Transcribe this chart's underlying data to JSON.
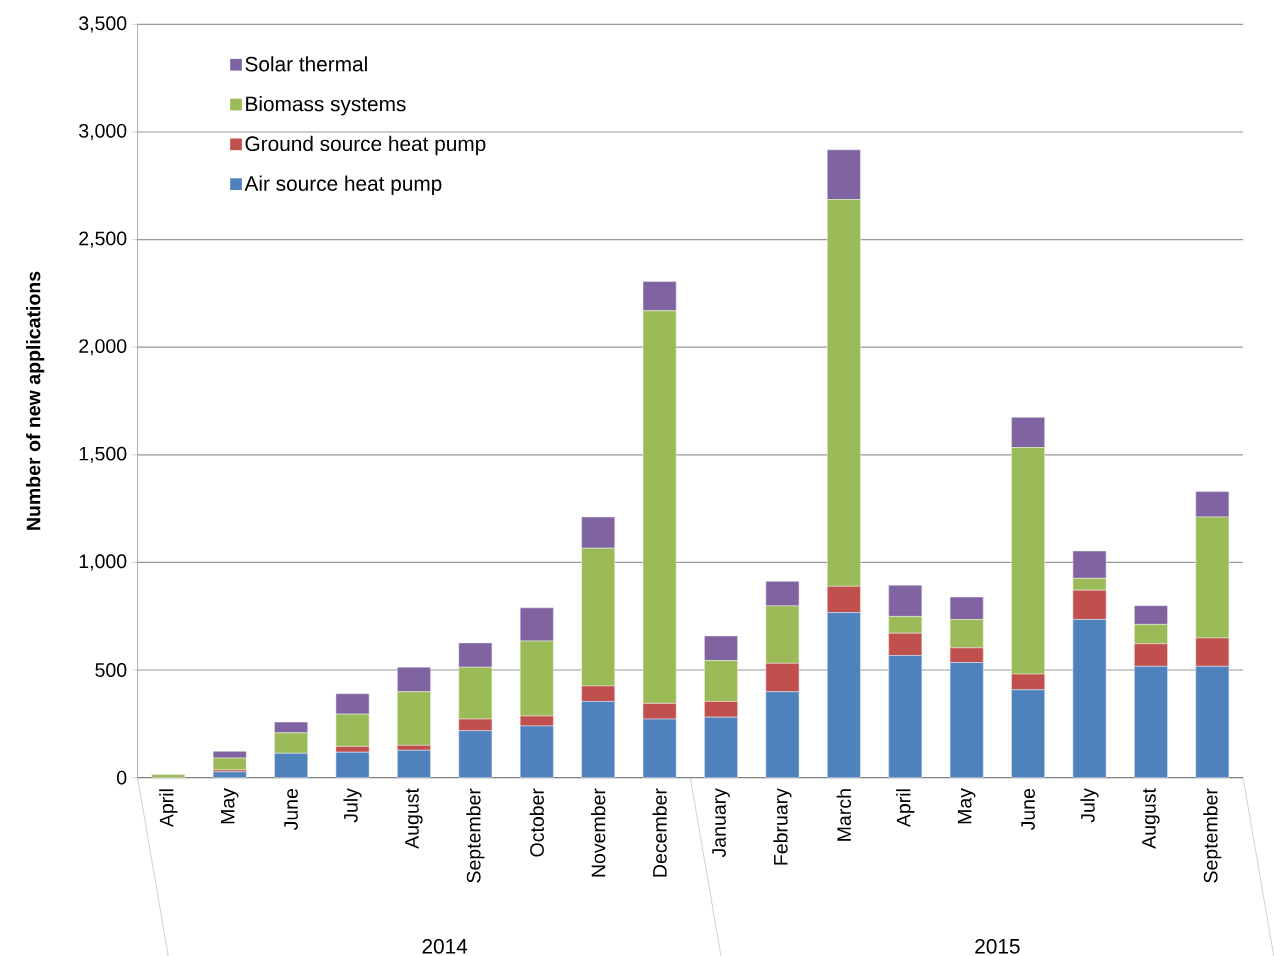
{
  "chart_data": {
    "type": "bar",
    "stacked": true,
    "ylabel": "Number of new applications",
    "categories": [
      "April",
      "May",
      "June",
      "July",
      "August",
      "September",
      "October",
      "November",
      "December",
      "January",
      "February",
      "March",
      "April",
      "May",
      "June",
      "July",
      "August",
      "September"
    ],
    "series": [
      {
        "name": "Air source heat pump",
        "color": "#4f81bd",
        "values": [
          null,
          27,
          113,
          118,
          127,
          218,
          240,
          354,
          272,
          281,
          399,
          767,
          567,
          535,
          408,
          735,
          517,
          517
        ]
      },
      {
        "name": "Ground source heat pump",
        "color": "#c0504d",
        "values": [
          null,
          9,
          null,
          27,
          23,
          54,
          46,
          72,
          73,
          73,
          132,
          122,
          104,
          68,
          73,
          136,
          105,
          132
        ]
      },
      {
        "name": "Biomass systems",
        "color": "#9bbb59",
        "values": [
          15,
          55,
          95,
          150,
          249,
          241,
          349,
          640,
          1824,
          190,
          267,
          1797,
          78,
          132,
          1053,
          55,
          90,
          562
        ]
      },
      {
        "name": "Solar thermal",
        "color": "#8064a2",
        "values": [
          null,
          31,
          50,
          95,
          114,
          113,
          154,
          145,
          136,
          114,
          114,
          231,
          145,
          104,
          140,
          127,
          87,
          118
        ]
      }
    ],
    "ylim": [
      0,
      3500
    ],
    "yticks": [
      0,
      500,
      {
        "value": 1000,
        "label": "1,000"
      },
      {
        "value": 1500,
        "label": "1,500"
      },
      {
        "value": 2000,
        "label": "2,000"
      },
      {
        "value": 2500,
        "label": "2,500"
      },
      {
        "value": 3000,
        "label": "3,000"
      },
      {
        "value": 3500,
        "label": "3,500"
      }
    ],
    "grid": "y",
    "legend": "top left",
    "annotations": [
      "2014",
      "2015"
    ]
  }
}
